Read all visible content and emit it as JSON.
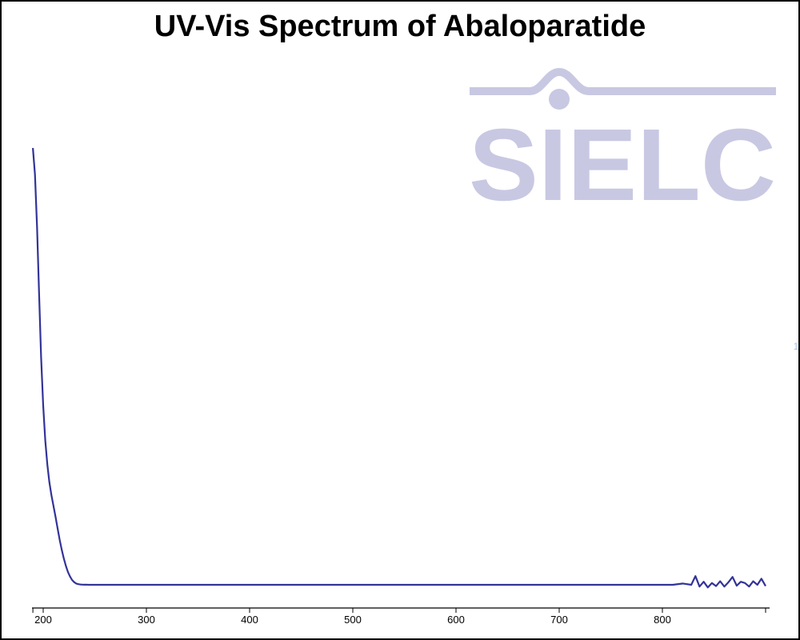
{
  "colors": {
    "line": "#333399",
    "watermark": "#c8c8e3",
    "axis": "#000000"
  },
  "watermark": {
    "text": "SIELC"
  },
  "stray_text": "1",
  "chart_data": {
    "type": "line",
    "title": "UV-Vis Spectrum of Abaloparatide",
    "xlabel": "",
    "ylabel": "",
    "xlim": [
      190,
      900
    ],
    "ylim": [
      0,
      1
    ],
    "x_ticks": [
      200,
      300,
      400,
      500,
      600,
      700,
      800
    ],
    "y_axis_visible": false,
    "grid": false,
    "series": [
      {
        "x": [
          190,
          192,
          194,
          196,
          198,
          200,
          202,
          204,
          206,
          208,
          210,
          212,
          214,
          216,
          218,
          220,
          222,
          224,
          226,
          228,
          230,
          232,
          234,
          236,
          238,
          240,
          242,
          244,
          246,
          248,
          250,
          255,
          260,
          270,
          280,
          300,
          320,
          340,
          360,
          380,
          400,
          420,
          440,
          460,
          480,
          500,
          520,
          540,
          560,
          580,
          600,
          620,
          640,
          660,
          680,
          700,
          720,
          740,
          760,
          780,
          800,
          810,
          820,
          828,
          832,
          836,
          840,
          844,
          848,
          852,
          856,
          860,
          864,
          868,
          872,
          876,
          880,
          884,
          888,
          892,
          896,
          900
        ],
        "y": [
          1.0,
          0.94,
          0.82,
          0.67,
          0.52,
          0.41,
          0.33,
          0.275,
          0.235,
          0.205,
          0.18,
          0.155,
          0.128,
          0.103,
          0.08,
          0.06,
          0.043,
          0.029,
          0.019,
          0.011,
          0.006,
          0.003,
          0.0015,
          0.0008,
          0.0004,
          0.0002,
          0.0001,
          0.0,
          0.0,
          0.0,
          0.0,
          0.0,
          0.0,
          0.0,
          0.0,
          0.0,
          0.0,
          0.0,
          0.0,
          0.0,
          0.0,
          0.0,
          0.0,
          0.0,
          0.0,
          0.0,
          0.0,
          0.0,
          0.0,
          0.0,
          0.0,
          0.0,
          0.0,
          0.0,
          0.0,
          0.0,
          0.0,
          0.0,
          0.0,
          0.0,
          0.0,
          0.0,
          0.003,
          0.0,
          0.02,
          -0.004,
          0.007,
          -0.006,
          0.004,
          -0.003,
          0.008,
          -0.004,
          0.006,
          0.018,
          -0.002,
          0.007,
          0.004,
          -0.004,
          0.008,
          0.0,
          0.014,
          -0.003
        ]
      }
    ]
  }
}
